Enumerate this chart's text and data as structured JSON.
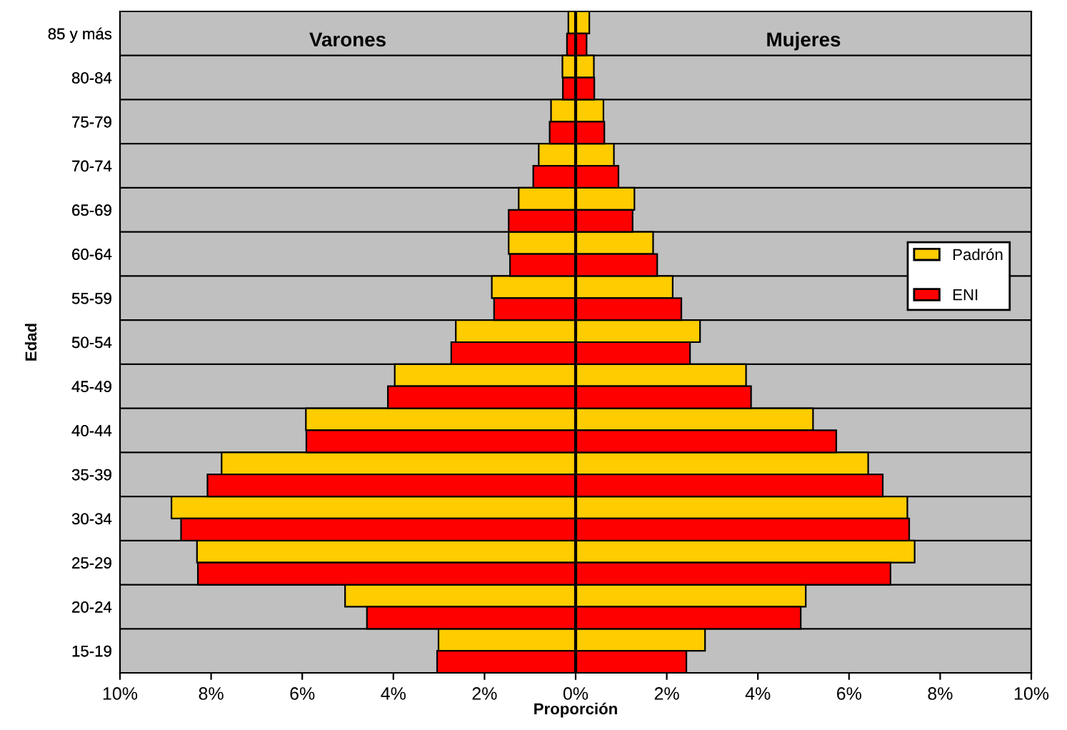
{
  "chart_data": [
    {
      "type": "bar",
      "orientation": "horizontal",
      "xlabel": "Proporción",
      "ylabel": "Edad",
      "categories": [
        "85 y más",
        "80-84",
        "75-79",
        "70-74",
        "65-69",
        "60-64",
        "55-59",
        "50-54",
        "45-49",
        "40-44",
        "35-39",
        "30-34",
        "25-29",
        "20-24",
        "15-19"
      ],
      "series": [
        {
          "color": "#ffcc00",
          "values": [
            0.16,
            0.29,
            0.54,
            0.81,
            1.25,
            1.47,
            1.84,
            2.63,
            3.97,
            5.92,
            7.77,
            8.87,
            8.31,
            5.06,
            3.01
          ]
        },
        {
          "color": "#ff0000",
          "values": [
            0.19,
            0.28,
            0.57,
            0.93,
            1.47,
            1.44,
            1.79,
            2.73,
            4.12,
            5.91,
            8.08,
            8.66,
            8.29,
            4.58,
            3.04
          ]
        }
      ],
      "xlim": [
        10,
        0
      ],
      "xticks": [
        {
          "value": 10,
          "label": "10%"
        },
        {
          "value": 8,
          "label": "8%"
        },
        {
          "value": 6,
          "label": "6%"
        },
        {
          "value": 4,
          "label": "4%"
        },
        {
          "value": 2,
          "label": "2%"
        },
        {
          "value": 0,
          "label": "0%"
        }
      ],
      "annotations": [
        "Varones"
      ],
      "grid": "y"
    },
    {
      "type": "bar",
      "orientation": "horizontal",
      "categories": [
        "85 y más",
        "80-84",
        "75-79",
        "70-74",
        "65-69",
        "60-64",
        "55-59",
        "50-54",
        "45-49",
        "40-44",
        "35-39",
        "30-34",
        "25-29",
        "20-24",
        "15-19"
      ],
      "series": [
        {
          "name": "Padrón",
          "color": "#ffcc00",
          "values": [
            0.3,
            0.4,
            0.61,
            0.84,
            1.29,
            1.7,
            2.13,
            2.73,
            3.74,
            5.21,
            6.42,
            7.28,
            7.44,
            5.05,
            2.84
          ]
        },
        {
          "name": "ENI",
          "color": "#ff0000",
          "values": [
            0.24,
            0.41,
            0.63,
            0.94,
            1.25,
            1.79,
            2.32,
            2.51,
            3.85,
            5.72,
            6.74,
            7.32,
            6.91,
            4.94,
            2.43
          ]
        }
      ],
      "xlim": [
        0,
        10
      ],
      "xticks": [
        {
          "value": 2,
          "label": "2%"
        },
        {
          "value": 4,
          "label": "4%"
        },
        {
          "value": 6,
          "label": "6%"
        },
        {
          "value": 8,
          "label": "8%"
        },
        {
          "value": 10,
          "label": "10%"
        }
      ],
      "annotations": [
        "Mujeres"
      ],
      "grid": "y",
      "legend": "right"
    }
  ]
}
